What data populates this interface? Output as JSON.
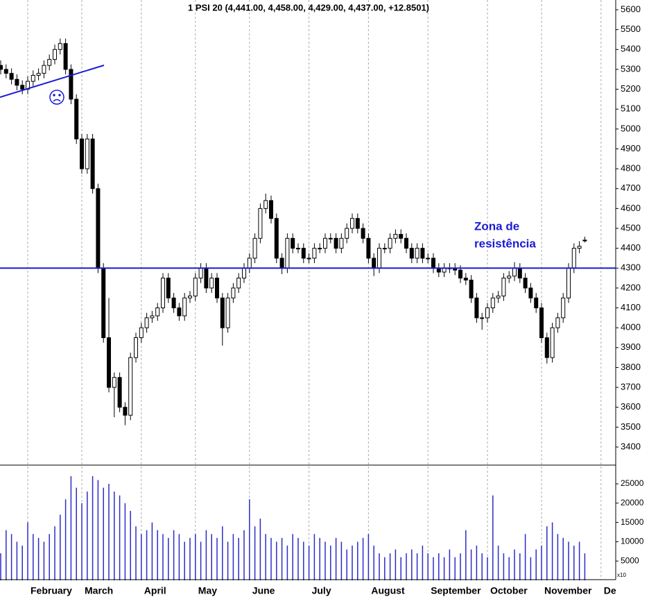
{
  "chart_data": [
    {
      "type": "candlestick",
      "title": "1 PSI 20 (4,441.00, 4,458.00, 4,429.00, 4,437.00, +12.8501)",
      "annotation": [
        "Zona de",
        "resistência"
      ],
      "hline": 4300,
      "up_color": "#ffffff",
      "down_color": "#000000",
      "line_color": "#1a1ad6",
      "open": [
        5320,
        5300,
        5280,
        5250,
        5220,
        5200,
        5240,
        5270,
        5280,
        5320,
        5350,
        5400,
        5430,
        5300,
        5150,
        4950,
        4800,
        4950,
        4700,
        4300,
        3950,
        3700,
        3750,
        3600,
        3560,
        3850,
        3950,
        4000,
        4050,
        4060,
        4100,
        4250,
        4150,
        4100,
        4060,
        4150,
        4160,
        4250,
        4300,
        4200,
        4250,
        4150,
        4000,
        4150,
        4200,
        4250,
        4300,
        4350,
        4450,
        4600,
        4640,
        4550,
        4350,
        4300,
        4450,
        4400,
        4400,
        4350,
        4350,
        4400,
        4400,
        4450,
        4450,
        4400,
        4450,
        4500,
        4550,
        4500,
        4450,
        4350,
        4300,
        4400,
        4400,
        4450,
        4470,
        4450,
        4400,
        4350,
        4400,
        4350,
        4350,
        4300,
        4280,
        4300,
        4300,
        4290,
        4250,
        4240,
        4150,
        4050,
        4050,
        4100,
        4150,
        4160,
        4250,
        4260,
        4300,
        4250,
        4200,
        4150,
        4100,
        3950,
        3850,
        4000,
        4050,
        4150,
        4300,
        4400,
        4441,
        null,
        null,
        null
      ],
      "high": [
        5345,
        5325,
        5305,
        5275,
        5245,
        5265,
        5295,
        5305,
        5345,
        5375,
        5425,
        5455,
        5455,
        5325,
        5175,
        4975,
        4975,
        4975,
        4725,
        4325,
        4150,
        3775,
        3775,
        3625,
        3875,
        3975,
        4025,
        4075,
        4085,
        4125,
        4275,
        4275,
        4175,
        4125,
        4175,
        4185,
        4275,
        4325,
        4325,
        4275,
        4275,
        4175,
        4175,
        4225,
        4275,
        4325,
        4375,
        4475,
        4625,
        4675,
        4665,
        4575,
        4375,
        4475,
        4475,
        4425,
        4425,
        4375,
        4425,
        4425,
        4475,
        4475,
        4475,
        4475,
        4525,
        4575,
        4575,
        4525,
        4475,
        4375,
        4425,
        4425,
        4475,
        4495,
        4495,
        4475,
        4425,
        4425,
        4425,
        4375,
        4375,
        4325,
        4325,
        4325,
        4325,
        4315,
        4275,
        4265,
        4175,
        4075,
        4125,
        4175,
        4185,
        4275,
        4285,
        4330,
        4325,
        4275,
        4225,
        4175,
        4125,
        3975,
        4025,
        4075,
        4175,
        4325,
        4425,
        4435,
        4458,
        null,
        null,
        null
      ],
      "low": [
        5275,
        5255,
        5225,
        5195,
        5175,
        5175,
        5215,
        5245,
        5255,
        5295,
        5325,
        5375,
        5275,
        5125,
        4925,
        4775,
        4775,
        4675,
        4275,
        3925,
        3675,
        3550,
        3575,
        3510,
        3535,
        3825,
        3925,
        3975,
        4025,
        4035,
        4075,
        4125,
        4075,
        4035,
        4035,
        4125,
        4135,
        4225,
        4175,
        4175,
        4125,
        3910,
        3975,
        4125,
        4175,
        4225,
        4275,
        4325,
        4425,
        4575,
        4525,
        4325,
        4270,
        4275,
        4375,
        4375,
        4325,
        4325,
        4325,
        4375,
        4375,
        4425,
        4375,
        4375,
        4425,
        4475,
        4475,
        4425,
        4325,
        4260,
        4275,
        4375,
        4375,
        4425,
        4425,
        4375,
        4325,
        4325,
        4325,
        4325,
        4275,
        4255,
        4255,
        4275,
        4265,
        4225,
        4215,
        4125,
        4025,
        3990,
        4025,
        4075,
        4125,
        4135,
        4225,
        4235,
        4225,
        4175,
        4125,
        4075,
        3925,
        3820,
        3825,
        3975,
        4025,
        4125,
        4275,
        4375,
        4429,
        null,
        null,
        null
      ],
      "close": [
        5300,
        5280,
        5250,
        5220,
        5200,
        5240,
        5270,
        5280,
        5320,
        5350,
        5400,
        5430,
        5300,
        5150,
        4950,
        4800,
        4950,
        4700,
        4300,
        3950,
        3700,
        3750,
        3600,
        3560,
        3850,
        3950,
        4000,
        4050,
        4060,
        4100,
        4250,
        4150,
        4100,
        4060,
        4150,
        4160,
        4250,
        4300,
        4200,
        4250,
        4150,
        4000,
        4150,
        4200,
        4250,
        4300,
        4350,
        4450,
        4600,
        4640,
        4550,
        4350,
        4300,
        4450,
        4400,
        4400,
        4350,
        4350,
        4400,
        4400,
        4450,
        4450,
        4400,
        4450,
        4500,
        4550,
        4500,
        4450,
        4350,
        4300,
        4400,
        4400,
        4450,
        4470,
        4450,
        4400,
        4350,
        4400,
        4350,
        4350,
        4300,
        4280,
        4300,
        4300,
        4290,
        4250,
        4240,
        4150,
        4050,
        4050,
        4100,
        4150,
        4160,
        4250,
        4260,
        4300,
        4250,
        4200,
        4150,
        4100,
        3950,
        3850,
        4000,
        4050,
        4150,
        4300,
        4400,
        4410,
        4437,
        null,
        null,
        null
      ],
      "ylim": [
        3316,
        5649
      ],
      "yticks": [
        3400,
        3500,
        3600,
        3700,
        3800,
        3900,
        4000,
        4100,
        4200,
        4300,
        4400,
        4500,
        4600,
        4700,
        4800,
        4900,
        5000,
        5100,
        5200,
        5300,
        5400,
        5500,
        5600
      ]
    },
    {
      "type": "bar",
      "color": "#2b2bc8",
      "scale_label": "x10",
      "categories": [
        null,
        null,
        null,
        null,
        null,
        "February",
        null,
        null,
        null,
        null,
        null,
        null,
        null,
        null,
        null,
        "March",
        null,
        null,
        null,
        null,
        null,
        null,
        null,
        null,
        null,
        null,
        "April",
        null,
        null,
        null,
        null,
        null,
        null,
        null,
        null,
        null,
        "May",
        null,
        null,
        null,
        null,
        null,
        null,
        null,
        null,
        null,
        "June",
        null,
        null,
        null,
        null,
        null,
        null,
        null,
        null,
        null,
        null,
        "July",
        null,
        null,
        null,
        null,
        null,
        null,
        null,
        null,
        null,
        null,
        "August",
        null,
        null,
        null,
        null,
        null,
        null,
        null,
        null,
        null,
        null,
        "September",
        null,
        null,
        null,
        null,
        null,
        null,
        null,
        null,
        null,
        null,
        "October",
        null,
        null,
        null,
        null,
        null,
        null,
        null,
        null,
        null,
        "November",
        null,
        null,
        null,
        null,
        null,
        null,
        null,
        null,
        null,
        null,
        "De"
      ],
      "values": [
        7000,
        13000,
        12000,
        10000,
        9000,
        15000,
        12000,
        11000,
        10000,
        12000,
        14000,
        17000,
        21000,
        27000,
        24000,
        20000,
        23000,
        27000,
        26000,
        24000,
        25000,
        23000,
        22000,
        20000,
        18000,
        14000,
        12000,
        13000,
        15000,
        13000,
        12000,
        11000,
        13000,
        12000,
        10000,
        11000,
        12000,
        10000,
        13000,
        12000,
        11000,
        14000,
        10000,
        12000,
        11000,
        13000,
        21000,
        14000,
        16000,
        12000,
        11000,
        10000,
        11000,
        9000,
        12000,
        11000,
        10000,
        9000,
        12000,
        11000,
        10000,
        9000,
        11000,
        10000,
        8000,
        9000,
        10000,
        11000,
        12000,
        9000,
        7000,
        6000,
        7000,
        8000,
        6000,
        7000,
        8000,
        7000,
        9000,
        7000,
        6000,
        7000,
        6000,
        8000,
        6000,
        7000,
        13000,
        8000,
        9000,
        7000,
        6000,
        22000,
        9000,
        7000,
        6000,
        8000,
        7000,
        12000,
        6000,
        8000,
        9000,
        14000,
        15000,
        12000,
        11000,
        10000,
        9000,
        10000,
        7000,
        null,
        null,
        null
      ],
      "ylim": [
        0,
        29500
      ],
      "yticks": [
        5000,
        10000,
        15000,
        20000,
        25000
      ]
    }
  ]
}
